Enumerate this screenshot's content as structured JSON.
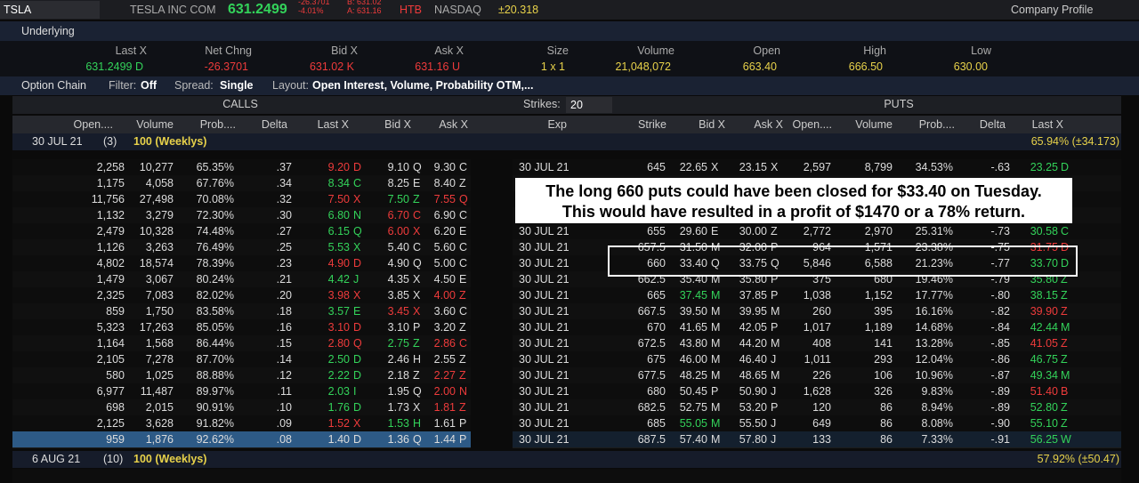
{
  "top_bar": {
    "symbol": "TSLA",
    "name": "TESLA INC COM",
    "last": "631.2499",
    "change": "-26.3701",
    "change_pct": "-4.01%",
    "bid": "B: 631.02",
    "ask": "A: 631.16",
    "htb": "HTB",
    "exchange": "NASDAQ",
    "expected_move": "±20.318",
    "company_profile": "Company Profile"
  },
  "underlying": {
    "title": "Underlying",
    "headers": [
      "Last X",
      "Net Chng",
      "Bid X",
      "Ask X",
      "Size",
      "Volume",
      "Open",
      "High",
      "Low"
    ],
    "values": [
      "631.2499 D",
      "-26.3701",
      "631.02 K",
      "631.16 U",
      "1 x 1",
      "21,048,072",
      "663.40",
      "666.50",
      "630.00"
    ]
  },
  "option_chain_bar": {
    "title": "Option Chain",
    "filter_label": "Filter:",
    "filter": "Off",
    "spread_label": "Spread:",
    "spread": "Single",
    "layout_label": "Layout:",
    "layout": "Open Interest, Volume, Probability OTM,..."
  },
  "chain": {
    "calls_label": "CALLS",
    "strikes_label": "Strikes:",
    "strikes": "20",
    "puts_label": "PUTS",
    "call_headers": [
      "Open....",
      "Volume",
      "Prob....",
      "Delta",
      "Last X",
      "Bid X",
      "Ask X"
    ],
    "mid_headers": [
      "Exp",
      "Strike"
    ],
    "put_headers": [
      "Bid X",
      "Ask X",
      "Open....",
      "Volume",
      "Prob....",
      "Delta",
      "Last X"
    ],
    "expirations": [
      {
        "date": "30 JUL 21",
        "count": "(3)",
        "multiplier": "100 (Weeklys)",
        "implied": "65.94% (±34.173)"
      },
      {
        "date": "6 AUG 21",
        "count": "(10)",
        "multiplier": "100 (Weeklys)",
        "implied": "57.92% (±50.47)"
      }
    ],
    "rows": [
      {
        "calls": [
          "2,258",
          "10,277",
          "65.35%",
          ".37",
          "9.20",
          "D",
          "9.10",
          "Q",
          "9.30",
          "C"
        ],
        "call_tones": "rww",
        "exp": "30 JUL 21",
        "strike": "645",
        "puts": [
          "22.65",
          "X",
          "23.15",
          "X",
          "2,597",
          "8,799",
          "34.53%",
          "-.63",
          "23.25",
          "D"
        ],
        "put_tones": "wwg"
      },
      {
        "calls": [
          "1,175",
          "4,058",
          "67.76%",
          ".34",
          "8.34",
          "C",
          "8.25",
          "E",
          "8.40",
          "Z"
        ],
        "call_tones": "gww"
      },
      {
        "calls": [
          "11,756",
          "27,498",
          "70.08%",
          ".32",
          "7.50",
          "X",
          "7.50",
          "Z",
          "7.55",
          "Q"
        ],
        "call_tones": "rgr"
      },
      {
        "calls": [
          "1,132",
          "3,279",
          "72.30%",
          ".30",
          "6.80",
          "N",
          "6.70",
          "C",
          "6.90",
          "C"
        ],
        "call_tones": "grw"
      },
      {
        "calls": [
          "2,479",
          "10,328",
          "74.48%",
          ".27",
          "6.15",
          "Q",
          "6.00",
          "X",
          "6.20",
          "E"
        ],
        "call_tones": "grw",
        "exp": "30 JUL 21",
        "strike": "655",
        "puts": [
          "29.60",
          "E",
          "30.00",
          "Z",
          "2,772",
          "2,970",
          "25.31%",
          "-.73",
          "30.58",
          "C"
        ],
        "put_tones": "wwg"
      },
      {
        "calls": [
          "1,126",
          "3,263",
          "76.49%",
          ".25",
          "5.53",
          "X",
          "5.40",
          "C",
          "5.60",
          "C"
        ],
        "call_tones": "gww",
        "exp": "30 JUL 21",
        "strike": "657.5",
        "puts": [
          "31.50",
          "M",
          "32.00",
          "P",
          "964",
          "1,571",
          "23.38%",
          "-.75",
          "31.75",
          "D"
        ],
        "put_tones": "wwr"
      },
      {
        "calls": [
          "4,802",
          "18,574",
          "78.39%",
          ".23",
          "4.90",
          "D",
          "4.90",
          "Q",
          "5.00",
          "C"
        ],
        "call_tones": "rww",
        "exp": "30 JUL 21",
        "strike": "660",
        "puts": [
          "33.40",
          "Q",
          "33.75",
          "Q",
          "5,846",
          "6,588",
          "21.23%",
          "-.77",
          "33.70",
          "D"
        ],
        "put_tones": "wwg"
      },
      {
        "calls": [
          "1,479",
          "3,067",
          "80.24%",
          ".21",
          "4.42",
          "J",
          "4.35",
          "X",
          "4.50",
          "E"
        ],
        "call_tones": "gww",
        "exp": "30 JUL 21",
        "strike": "662.5",
        "puts": [
          "35.40",
          "M",
          "35.80",
          "P",
          "375",
          "680",
          "19.46%",
          "-.79",
          "35.80",
          "Z"
        ],
        "put_tones": "wwg"
      },
      {
        "calls": [
          "2,325",
          "7,083",
          "82.02%",
          ".20",
          "3.98",
          "X",
          "3.85",
          "X",
          "4.00",
          "Z"
        ],
        "call_tones": "rwr",
        "exp": "30 JUL 21",
        "strike": "665",
        "puts": [
          "37.45",
          "M",
          "37.85",
          "P",
          "1,038",
          "1,152",
          "17.77%",
          "-.80",
          "38.15",
          "Z"
        ],
        "put_tones": "gwg"
      },
      {
        "calls": [
          "859",
          "1,750",
          "83.58%",
          ".18",
          "3.57",
          "E",
          "3.45",
          "X",
          "3.60",
          "C"
        ],
        "call_tones": "grw",
        "exp": "30 JUL 21",
        "strike": "667.5",
        "puts": [
          "39.50",
          "M",
          "39.95",
          "M",
          "260",
          "395",
          "16.16%",
          "-.82",
          "39.90",
          "Z"
        ],
        "put_tones": "wwr"
      },
      {
        "calls": [
          "5,323",
          "17,263",
          "85.05%",
          ".16",
          "3.10",
          "D",
          "3.10",
          "P",
          "3.20",
          "Z"
        ],
        "call_tones": "rww",
        "exp": "30 JUL 21",
        "strike": "670",
        "puts": [
          "41.65",
          "M",
          "42.05",
          "P",
          "1,017",
          "1,189",
          "14.68%",
          "-.84",
          "42.44",
          "M"
        ],
        "put_tones": "wwg"
      },
      {
        "calls": [
          "1,164",
          "1,568",
          "86.44%",
          ".15",
          "2.80",
          "Q",
          "2.75",
          "Z",
          "2.86",
          "C"
        ],
        "call_tones": "rgr",
        "exp": "30 JUL 21",
        "strike": "672.5",
        "puts": [
          "43.80",
          "M",
          "44.20",
          "M",
          "408",
          "141",
          "13.28%",
          "-.85",
          "41.05",
          "Z"
        ],
        "put_tones": "wwr"
      },
      {
        "calls": [
          "2,105",
          "7,278",
          "87.70%",
          ".14",
          "2.50",
          "D",
          "2.46",
          "H",
          "2.55",
          "Z"
        ],
        "call_tones": "gww",
        "exp": "30 JUL 21",
        "strike": "675",
        "puts": [
          "46.00",
          "M",
          "46.40",
          "J",
          "1,011",
          "293",
          "12.04%",
          "-.86",
          "46.75",
          "Z"
        ],
        "put_tones": "wwg"
      },
      {
        "calls": [
          "580",
          "1,025",
          "88.88%",
          ".12",
          "2.22",
          "D",
          "2.18",
          "Z",
          "2.27",
          "Z"
        ],
        "call_tones": "gwr",
        "exp": "30 JUL 21",
        "strike": "677.5",
        "puts": [
          "48.25",
          "M",
          "48.65",
          "M",
          "226",
          "106",
          "10.96%",
          "-.87",
          "49.34",
          "M"
        ],
        "put_tones": "wwg"
      },
      {
        "calls": [
          "6,977",
          "11,487",
          "89.97%",
          ".11",
          "2.03",
          "I",
          "1.95",
          "Q",
          "2.00",
          "N"
        ],
        "call_tones": "gwr",
        "exp": "30 JUL 21",
        "strike": "680",
        "puts": [
          "50.45",
          "P",
          "50.90",
          "J",
          "1,628",
          "326",
          "9.83%",
          "-.89",
          "51.40",
          "B"
        ],
        "put_tones": "wwr"
      },
      {
        "calls": [
          "698",
          "2,015",
          "90.91%",
          ".10",
          "1.76",
          "D",
          "1.73",
          "X",
          "1.81",
          "Z"
        ],
        "call_tones": "gwr",
        "exp": "30 JUL 21",
        "strike": "682.5",
        "puts": [
          "52.75",
          "M",
          "53.20",
          "P",
          "120",
          "86",
          "8.94%",
          "-.89",
          "52.80",
          "Z"
        ],
        "put_tones": "wwg"
      },
      {
        "calls": [
          "2,125",
          "3,628",
          "91.82%",
          ".09",
          "1.52",
          "X",
          "1.53",
          "H",
          "1.61",
          "P"
        ],
        "call_tones": "rgw",
        "exp": "30 JUL 21",
        "strike": "685",
        "puts": [
          "55.05",
          "M",
          "55.50",
          "J",
          "649",
          "86",
          "8.08%",
          "-.90",
          "55.10",
          "Z"
        ],
        "put_tones": "gwg"
      },
      {
        "calls": [
          "959",
          "1,876",
          "92.62%",
          ".08",
          "1.40",
          "D",
          "1.36",
          "Q",
          "1.44",
          "P"
        ],
        "call_tones": "www",
        "exp": "30 JUL 21",
        "strike": "687.5",
        "puts": [
          "57.40",
          "M",
          "57.80",
          "J",
          "133",
          "86",
          "7.33%",
          "-.91",
          "56.25",
          "W"
        ],
        "put_tones": "wwg",
        "selected": true
      }
    ]
  },
  "annotation": {
    "lines": [
      "The long 660 puts could have been closed for $33.40 on Tuesday.",
      "This would have resulted in a profit of $1470 or a 78% return."
    ]
  }
}
